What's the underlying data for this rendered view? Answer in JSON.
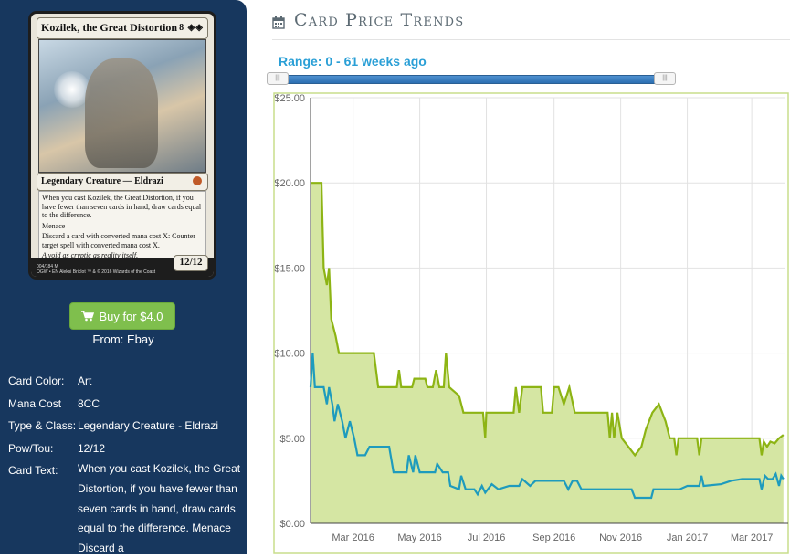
{
  "card": {
    "name": "Kozilek, the Great Distortion",
    "cost": "8 ◈◈",
    "type_line": "Legendary Creature — Eldrazi",
    "rules": [
      "When you cast Kozilek, the Great Distortion, if you have fewer than seven cards in hand, draw cards equal to the difference.",
      "Menace",
      "Discard a card with converted mana cost X: Counter target spell with converted mana cost X."
    ],
    "flavor": "A void as cryptic as reality itself.",
    "pt": "12/12",
    "footer_line1": "004/184 M",
    "footer_line2": "OGW • EN  Aleksi Briclot    ™ & © 2016 Wizards of the Coast"
  },
  "buy": {
    "label": "Buy for $4.0",
    "from": "From: Ebay"
  },
  "info": {
    "color_label": "Card Color:",
    "color_value": "Art",
    "mana_label": "Mana Cost",
    "mana_value": "8CC",
    "type_label": "Type & Class:",
    "type_value": "Legendary Creature - Eldrazi",
    "pt_label": "Pow/Tou:",
    "pt_value": "12/12",
    "text_label": "Card Text:",
    "text_value": "When you cast Kozilek, the Great Distortion, if you have fewer than seven cards in hand, draw cards equal to the difference. Menace Discard a"
  },
  "header": {
    "title": "Card Price Trends",
    "range": "Range: 0 - 61 weeks ago"
  },
  "icons": {
    "cart": "shopping-cart-icon",
    "calendar": "calendar-icon"
  },
  "colors": {
    "sidebar": "#17375e",
    "buy": "#7fbf4d",
    "green_series": "#8db414",
    "green_fill": "#d5e6a3",
    "blue_series": "#1e9bbd",
    "range_text": "#2a9fd6"
  },
  "chart_data": {
    "type": "line",
    "x_type": "date",
    "x_ticks": [
      "Mar 2016",
      "May 2016",
      "Jul 2016",
      "Sep 2016",
      "Nov 2016",
      "Jan 2017",
      "Mar 2017"
    ],
    "x_tick_dates": [
      "2016-03-01",
      "2016-05-01",
      "2016-07-01",
      "2016-09-01",
      "2016-11-01",
      "2017-01-01",
      "2017-03-01"
    ],
    "xlim": [
      "2016-01-22",
      "2017-03-31"
    ],
    "y_ticks": [
      "$0.00",
      "$5.00",
      "$10.00",
      "$15.00",
      "$20.00",
      "$25.00"
    ],
    "ylim": [
      0,
      25
    ],
    "grid": true,
    "series": [
      {
        "color": "#8db414",
        "fill": "#d5e6a3",
        "points": [
          [
            "2016-01-22",
            20
          ],
          [
            "2016-02-01",
            20
          ],
          [
            "2016-02-03",
            15
          ],
          [
            "2016-02-06",
            14
          ],
          [
            "2016-02-08",
            15
          ],
          [
            "2016-02-10",
            12
          ],
          [
            "2016-02-14",
            11
          ],
          [
            "2016-02-17",
            10
          ],
          [
            "2016-02-25",
            10
          ],
          [
            "2016-03-20",
            10
          ],
          [
            "2016-03-24",
            8
          ],
          [
            "2016-04-10",
            8
          ],
          [
            "2016-04-12",
            9
          ],
          [
            "2016-04-14",
            8
          ],
          [
            "2016-04-24",
            8
          ],
          [
            "2016-04-26",
            8.5
          ],
          [
            "2016-05-06",
            8.5
          ],
          [
            "2016-05-08",
            8
          ],
          [
            "2016-05-13",
            8
          ],
          [
            "2016-05-16",
            9
          ],
          [
            "2016-05-19",
            8
          ],
          [
            "2016-05-23",
            8
          ],
          [
            "2016-05-25",
            10
          ],
          [
            "2016-05-28",
            8
          ],
          [
            "2016-06-06",
            7.5
          ],
          [
            "2016-06-10",
            6.5
          ],
          [
            "2016-06-28",
            6.5
          ],
          [
            "2016-06-30",
            5
          ],
          [
            "2016-07-01",
            6.5
          ],
          [
            "2016-07-26",
            6.5
          ],
          [
            "2016-07-28",
            8
          ],
          [
            "2016-07-31",
            6.5
          ],
          [
            "2016-08-03",
            8
          ],
          [
            "2016-08-20",
            8
          ],
          [
            "2016-08-22",
            6.5
          ],
          [
            "2016-08-30",
            6.5
          ],
          [
            "2016-09-01",
            8
          ],
          [
            "2016-09-05",
            8
          ],
          [
            "2016-09-10",
            7
          ],
          [
            "2016-09-15",
            8
          ],
          [
            "2016-09-20",
            6.5
          ],
          [
            "2016-10-20",
            6.5
          ],
          [
            "2016-10-22",
            5
          ],
          [
            "2016-10-24",
            6.5
          ],
          [
            "2016-10-26",
            5
          ],
          [
            "2016-10-29",
            6.5
          ],
          [
            "2016-11-02",
            5
          ],
          [
            "2016-11-08",
            4.5
          ],
          [
            "2016-11-14",
            4
          ],
          [
            "2016-11-20",
            4.5
          ],
          [
            "2016-11-24",
            5.5
          ],
          [
            "2016-11-30",
            6.5
          ],
          [
            "2016-12-06",
            7
          ],
          [
            "2016-12-12",
            6
          ],
          [
            "2016-12-16",
            5
          ],
          [
            "2016-12-20",
            5
          ],
          [
            "2016-12-22",
            4
          ],
          [
            "2016-12-24",
            5
          ],
          [
            "2017-01-10",
            5
          ],
          [
            "2017-01-12",
            4
          ],
          [
            "2017-01-14",
            5
          ],
          [
            "2017-03-08",
            5
          ],
          [
            "2017-03-10",
            4
          ],
          [
            "2017-03-12",
            4.8
          ],
          [
            "2017-03-15",
            4.5
          ],
          [
            "2017-03-18",
            4.8
          ],
          [
            "2017-03-22",
            4.7
          ],
          [
            "2017-03-26",
            5
          ],
          [
            "2017-03-30",
            5.2
          ]
        ]
      },
      {
        "color": "#1e9bbd",
        "points": [
          [
            "2016-01-22",
            8
          ],
          [
            "2016-01-24",
            10
          ],
          [
            "2016-01-26",
            8
          ],
          [
            "2016-02-03",
            8
          ],
          [
            "2016-02-06",
            7
          ],
          [
            "2016-02-08",
            8
          ],
          [
            "2016-02-11",
            7
          ],
          [
            "2016-02-13",
            6
          ],
          [
            "2016-02-16",
            7
          ],
          [
            "2016-02-20",
            6
          ],
          [
            "2016-02-23",
            5
          ],
          [
            "2016-02-27",
            6
          ],
          [
            "2016-03-02",
            5
          ],
          [
            "2016-03-05",
            4
          ],
          [
            "2016-03-12",
            4
          ],
          [
            "2016-03-16",
            4.5
          ],
          [
            "2016-04-03",
            4.5
          ],
          [
            "2016-04-07",
            3
          ],
          [
            "2016-04-19",
            3
          ],
          [
            "2016-04-21",
            4
          ],
          [
            "2016-04-25",
            3
          ],
          [
            "2016-04-27",
            4
          ],
          [
            "2016-05-01",
            3
          ],
          [
            "2016-05-15",
            3
          ],
          [
            "2016-05-17",
            3.5
          ],
          [
            "2016-05-22",
            3
          ],
          [
            "2016-05-27",
            3
          ],
          [
            "2016-05-29",
            2.2
          ],
          [
            "2016-06-06",
            2
          ],
          [
            "2016-06-08",
            2.8
          ],
          [
            "2016-06-12",
            2
          ],
          [
            "2016-06-20",
            2
          ],
          [
            "2016-06-23",
            1.7
          ],
          [
            "2016-06-27",
            2.2
          ],
          [
            "2016-06-30",
            1.8
          ],
          [
            "2016-07-06",
            2.3
          ],
          [
            "2016-07-12",
            2
          ],
          [
            "2016-07-22",
            2.2
          ],
          [
            "2016-07-31",
            2.2
          ],
          [
            "2016-08-03",
            2.6
          ],
          [
            "2016-08-10",
            2.2
          ],
          [
            "2016-08-15",
            2.5
          ],
          [
            "2016-09-10",
            2.5
          ],
          [
            "2016-09-14",
            2
          ],
          [
            "2016-09-18",
            2.5
          ],
          [
            "2016-09-22",
            2.5
          ],
          [
            "2016-09-26",
            2
          ],
          [
            "2016-11-11",
            2
          ],
          [
            "2016-11-14",
            1.5
          ],
          [
            "2016-11-29",
            1.5
          ],
          [
            "2016-12-01",
            2
          ],
          [
            "2016-12-25",
            2
          ],
          [
            "2017-01-01",
            2.2
          ],
          [
            "2017-01-12",
            2.2
          ],
          [
            "2017-01-14",
            2.8
          ],
          [
            "2017-01-16",
            2.2
          ],
          [
            "2017-02-01",
            2.3
          ],
          [
            "2017-02-10",
            2.5
          ],
          [
            "2017-02-20",
            2.6
          ],
          [
            "2017-03-08",
            2.6
          ],
          [
            "2017-03-10",
            2
          ],
          [
            "2017-03-13",
            2.8
          ],
          [
            "2017-03-16",
            2.6
          ],
          [
            "2017-03-20",
            2.6
          ],
          [
            "2017-03-23",
            2.9
          ],
          [
            "2017-03-26",
            2.2
          ],
          [
            "2017-03-28",
            2.8
          ],
          [
            "2017-03-30",
            2.6
          ]
        ]
      }
    ]
  }
}
